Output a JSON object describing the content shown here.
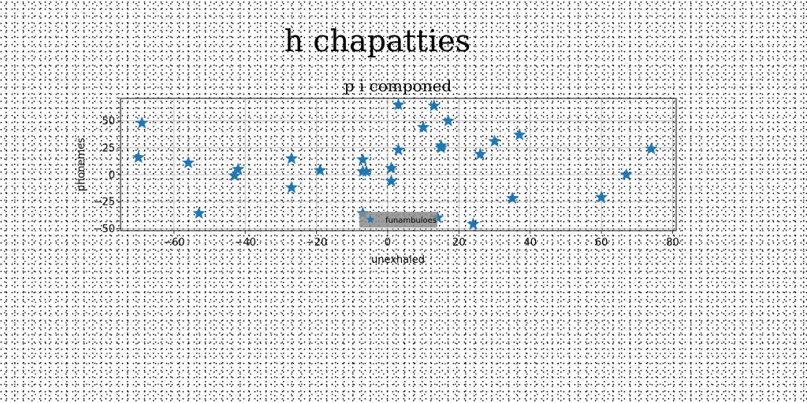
{
  "suptitle": "h chapatties",
  "chart_data": {
    "type": "scatter",
    "title": "p i componed",
    "xlabel": "unexhaled",
    "ylabel": "phonemes",
    "xlim": [
      -75,
      81
    ],
    "ylim": [
      -52,
      71
    ],
    "xticks": [
      -60,
      -40,
      -20,
      0,
      20,
      40,
      60,
      80
    ],
    "xtick_labels": [
      "−60",
      "−40",
      "−20",
      "0",
      "20",
      "40",
      "60",
      "80"
    ],
    "yticks": [
      -50,
      -25,
      0,
      25,
      50
    ],
    "ytick_labels": [
      "−50",
      "−25",
      "0",
      "25",
      "50"
    ],
    "grid": true,
    "legend_position": "lower center",
    "marker": "star",
    "color": "#1f77b4",
    "series": [
      {
        "name": "funambuloes",
        "x": [
          -69,
          -70,
          -56,
          -53,
          -43,
          -42,
          -27,
          -27,
          -19,
          -7,
          -7,
          -6,
          -7,
          1,
          1,
          3,
          3,
          10,
          13,
          15,
          15,
          14,
          17,
          24,
          26,
          30,
          35,
          37,
          60,
          67,
          74
        ],
        "y": [
          48,
          16,
          11,
          -36,
          -1,
          5,
          15,
          -12,
          4,
          14,
          3,
          3,
          -36,
          6,
          -6,
          65,
          23,
          44,
          64,
          27,
          25,
          -40,
          50,
          -46,
          19,
          31,
          -22,
          37,
          -21,
          0,
          24
        ]
      }
    ]
  }
}
